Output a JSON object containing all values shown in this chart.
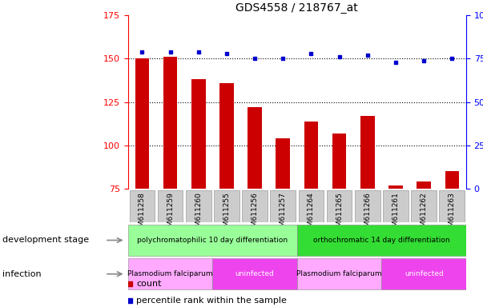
{
  "title": "GDS4558 / 218767_at",
  "samples": [
    "GSM611258",
    "GSM611259",
    "GSM611260",
    "GSM611255",
    "GSM611256",
    "GSM611257",
    "GSM611264",
    "GSM611265",
    "GSM611266",
    "GSM611261",
    "GSM611262",
    "GSM611263"
  ],
  "counts": [
    150,
    151,
    138,
    136,
    122,
    104,
    114,
    107,
    117,
    77,
    79,
    85
  ],
  "percentile_ranks": [
    79,
    79,
    79,
    78,
    75,
    75,
    78,
    76,
    77,
    73,
    74,
    75
  ],
  "ylim_left": [
    75,
    175
  ],
  "ylim_right": [
    0,
    100
  ],
  "yticks_left": [
    75,
    100,
    125,
    150,
    175
  ],
  "yticks_right": [
    0,
    25,
    50,
    75,
    100
  ],
  "bar_color": "#cc0000",
  "dot_color": "#0000cc",
  "bar_width": 0.5,
  "development_stage_groups": [
    {
      "label": "polychromatophilic 10 day differentiation",
      "start": 0,
      "end": 5,
      "color": "#99ff99"
    },
    {
      "label": "orthochromatic 14 day differentiation",
      "start": 6,
      "end": 11,
      "color": "#33dd33"
    }
  ],
  "infection_groups": [
    {
      "label": "Plasmodium falciparum",
      "start": 0,
      "end": 2,
      "color": "#ffaaff"
    },
    {
      "label": "uninfected",
      "start": 3,
      "end": 5,
      "color": "#ee44ee"
    },
    {
      "label": "Plasmodium falciparum",
      "start": 6,
      "end": 8,
      "color": "#ffaaff"
    },
    {
      "label": "uninfected",
      "start": 9,
      "end": 11,
      "color": "#ee44ee"
    }
  ],
  "dev_stage_label": "development stage",
  "infection_label": "infection",
  "legend_count": "count",
  "legend_percentile": "percentile rank within the sample",
  "background_color": "#ffffff",
  "xtick_bg_color": "#cccccc",
  "grid_yticks": [
    100,
    125,
    150
  ]
}
